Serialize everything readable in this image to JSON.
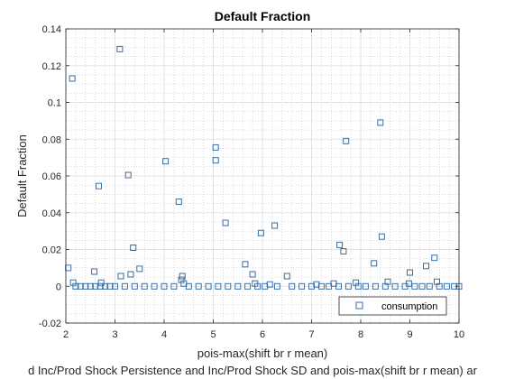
{
  "chart_data": {
    "type": "scatter",
    "title": "Default Fraction",
    "xlabel": "pois-max(shift br r mean)",
    "ylabel": "Default Fraction",
    "caption": "d Inc/Prod Shock Persistence and Inc/Prod Shock SD and pois-max(shift br r mean) ar",
    "xlim": [
      2,
      10
    ],
    "ylim": [
      -0.02,
      0.14
    ],
    "xticks": [
      2,
      3,
      4,
      5,
      6,
      7,
      8,
      9,
      10
    ],
    "yticks": [
      -0.02,
      0,
      0.02,
      0.04,
      0.06,
      0.08,
      0.1,
      0.12,
      0.14
    ],
    "xtick_labels": [
      "2",
      "3",
      "4",
      "5",
      "6",
      "7",
      "8",
      "9",
      "10"
    ],
    "ytick_labels": [
      "-0.02",
      "0",
      "0.02",
      "0.04",
      "0.06",
      "0.08",
      "0.1",
      "0.12",
      "0.14"
    ],
    "grid": true,
    "minor_grid": true,
    "legend": {
      "location": "bottom-right",
      "entries": [
        "consumption"
      ]
    },
    "marker_color": "#3a6ea5",
    "series": [
      {
        "name": "consumption",
        "marker": "square",
        "points": [
          [
            2.13,
            0.113
          ],
          [
            3.1,
            0.129
          ],
          [
            3.27,
            0.0605
          ],
          [
            2.67,
            0.0545
          ],
          [
            4.03,
            0.068
          ],
          [
            4.3,
            0.046
          ],
          [
            5.05,
            0.0755
          ],
          [
            5.05,
            0.0685
          ],
          [
            5.25,
            0.0345
          ],
          [
            5.97,
            0.029
          ],
          [
            6.25,
            0.033
          ],
          [
            3.37,
            0.021
          ],
          [
            7.7,
            0.079
          ],
          [
            8.4,
            0.089
          ],
          [
            8.43,
            0.027
          ],
          [
            7.57,
            0.0225
          ],
          [
            7.65,
            0.019
          ],
          [
            8.27,
            0.0125
          ],
          [
            9.33,
            0.011
          ],
          [
            9.5,
            0.0155
          ],
          [
            5.65,
            0.012
          ],
          [
            5.8,
            0.0065
          ],
          [
            6.5,
            0.0055
          ],
          [
            9.0,
            0.0075
          ],
          [
            2.05,
            0.01
          ],
          [
            2.58,
            0.008
          ],
          [
            3.12,
            0.0055
          ],
          [
            3.32,
            0.0065
          ],
          [
            3.5,
            0.0095
          ],
          [
            4.37,
            0.0055
          ],
          [
            4.35,
            0.0035
          ],
          [
            8.55,
            0.0025
          ],
          [
            9.55,
            0.0025
          ],
          [
            7.45,
            0.0015
          ],
          [
            7.9,
            0.002
          ],
          [
            2.15,
            0.002
          ],
          [
            2.72,
            0.002
          ],
          [
            4.4,
            0.0015
          ],
          [
            5.85,
            0.0015
          ],
          [
            6.15,
            0.001
          ],
          [
            7.1,
            0.001
          ],
          [
            8.98,
            0.0015
          ],
          [
            2.2,
            0
          ],
          [
            2.3,
            0
          ],
          [
            2.4,
            0
          ],
          [
            2.5,
            0
          ],
          [
            2.6,
            0
          ],
          [
            2.7,
            0
          ],
          [
            2.8,
            0
          ],
          [
            2.9,
            0
          ],
          [
            3.0,
            0
          ],
          [
            3.2,
            0
          ],
          [
            3.4,
            0
          ],
          [
            3.6,
            0
          ],
          [
            3.8,
            0
          ],
          [
            4.0,
            0
          ],
          [
            4.2,
            0
          ],
          [
            4.5,
            0
          ],
          [
            4.7,
            0
          ],
          [
            4.9,
            0
          ],
          [
            5.1,
            0
          ],
          [
            5.3,
            0
          ],
          [
            5.5,
            0
          ],
          [
            5.7,
            0
          ],
          [
            5.9,
            0
          ],
          [
            6.05,
            0
          ],
          [
            6.3,
            0
          ],
          [
            6.6,
            0
          ],
          [
            6.8,
            0
          ],
          [
            7.0,
            0
          ],
          [
            7.2,
            0
          ],
          [
            7.35,
            0
          ],
          [
            7.55,
            0
          ],
          [
            7.75,
            0
          ],
          [
            7.95,
            0
          ],
          [
            8.1,
            0
          ],
          [
            8.3,
            0
          ],
          [
            8.5,
            0
          ],
          [
            8.7,
            0
          ],
          [
            8.9,
            0
          ],
          [
            9.1,
            0
          ],
          [
            9.25,
            0
          ],
          [
            9.4,
            0
          ],
          [
            9.6,
            0
          ],
          [
            9.75,
            0
          ],
          [
            9.9,
            0
          ],
          [
            10.0,
            0
          ]
        ]
      }
    ]
  }
}
